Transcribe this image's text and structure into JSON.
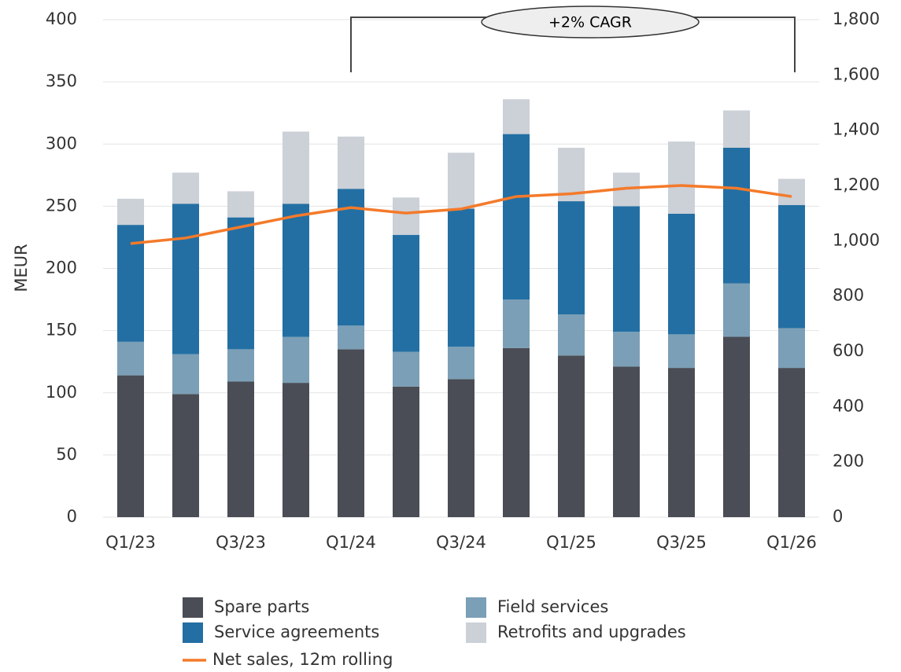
{
  "chart_data": {
    "type": "bar",
    "stacked": true,
    "categories": [
      "Q1/23",
      null,
      "Q3/23",
      null,
      "Q1/24",
      null,
      "Q3/24",
      null,
      "Q1/25",
      null,
      "Q3/25",
      null,
      "Q1/26"
    ],
    "series": [
      {
        "name": "Spare parts",
        "color": "#4a4d55",
        "values": [
          114,
          99,
          109,
          108,
          135,
          105,
          111,
          136,
          130,
          121,
          120,
          145,
          120
        ]
      },
      {
        "name": "Field services",
        "color": "#7b9fb6",
        "values": [
          27,
          32,
          26,
          37,
          19,
          28,
          26,
          39,
          33,
          28,
          27,
          43,
          32
        ]
      },
      {
        "name": "Service agreements",
        "color": "#236fa3",
        "values": [
          94,
          121,
          106,
          107,
          110,
          94,
          111,
          133,
          91,
          101,
          97,
          109,
          99
        ]
      },
      {
        "name": "Retrofits and upgrades",
        "color": "#ccd0d7",
        "values": [
          21,
          25,
          21,
          58,
          42,
          30,
          45,
          28,
          43,
          27,
          58,
          30,
          21
        ]
      },
      {
        "name": "Net sales, 12m rolling",
        "color": "#f47a2a",
        "type": "line",
        "axis": "y2",
        "values": [
          990,
          1010,
          1050,
          1090,
          1120,
          1100,
          1115,
          1160,
          1170,
          1190,
          1200,
          1190,
          1160
        ]
      }
    ],
    "ylabel": "MEUR",
    "ylim": [
      0,
      400
    ],
    "yticks": [
      0,
      50,
      100,
      150,
      200,
      250,
      300,
      350,
      400
    ],
    "y2lim": [
      0,
      1800
    ],
    "y2ticks": [
      0,
      200,
      400,
      600,
      800,
      {
        "value": 1000,
        "label": "1,000"
      },
      {
        "value": 1200,
        "label": "1,200"
      },
      {
        "value": 1400,
        "label": "1,400"
      },
      {
        "value": 1600,
        "label": "1,600"
      },
      {
        "value": 1800,
        "label": "1,800"
      }
    ],
    "grid": true,
    "annotation": "+2% CAGR",
    "legend": "bottom"
  }
}
